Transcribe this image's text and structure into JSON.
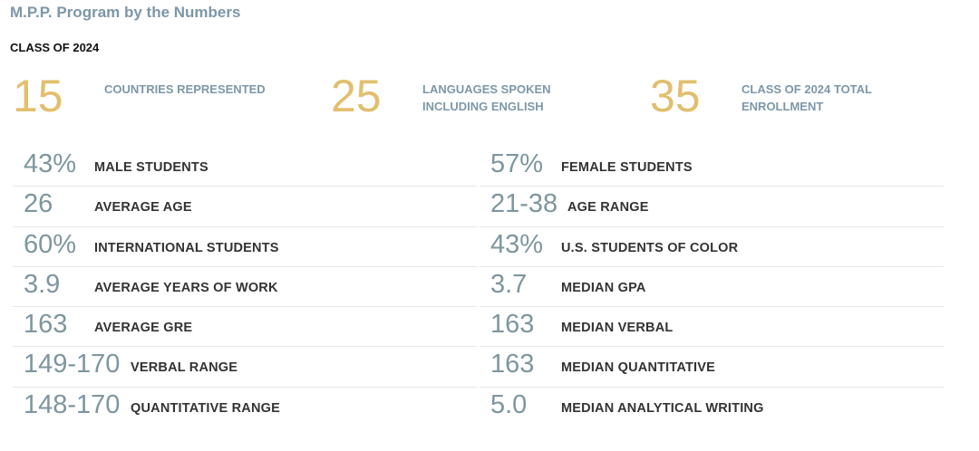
{
  "page": {
    "title": "M.P.P. Program by the Numbers",
    "class_label": "CLASS OF 2024"
  },
  "headline_stats": [
    {
      "value": "15",
      "label": "COUNTRIES REPRESENTED"
    },
    {
      "value": "25",
      "label": "LANGUAGES SPOKEN\nINCLUDING ENGLISH"
    },
    {
      "value": "35",
      "label": "CLASS OF 2024 TOTAL\nENROLLMENT"
    }
  ],
  "left_stats": [
    {
      "value": "43%",
      "label": "MALE STUDENTS"
    },
    {
      "value": "26",
      "label": "AVERAGE AGE"
    },
    {
      "value": "60%",
      "label": "INTERNATIONAL STUDENTS"
    },
    {
      "value": "3.9",
      "label": "AVERAGE YEARS OF WORK"
    },
    {
      "value": "163",
      "label": "AVERAGE GRE"
    },
    {
      "value": "149-170",
      "label": "VERBAL RANGE"
    },
    {
      "value": "148-170",
      "label": "QUANTITATIVE RANGE"
    }
  ],
  "right_stats": [
    {
      "value": "57%",
      "label": "FEMALE STUDENTS"
    },
    {
      "value": "21-38",
      "label": "AGE RANGE"
    },
    {
      "value": "43%",
      "label": "U.S. STUDENTS OF COLOR"
    },
    {
      "value": "3.7",
      "label": "MEDIAN GPA"
    },
    {
      "value": "163",
      "label": "MEDIAN VERBAL"
    },
    {
      "value": "163",
      "label": "MEDIAN QUANTITATIVE"
    },
    {
      "value": "5.0",
      "label": "MEDIAN ANALYTICAL WRITING"
    }
  ],
  "colors": {
    "title": "#7d97a8",
    "headline_number": "#e2bf6f",
    "stat_value": "#7e969f",
    "stat_label": "#333333"
  }
}
